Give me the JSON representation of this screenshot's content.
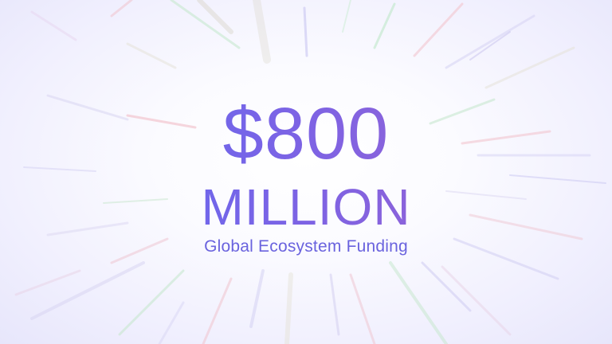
{
  "hero": {
    "amount": "$800",
    "unit": "MILLION",
    "caption": "Global Ecosystem Funding"
  },
  "colors": {
    "gradient_start": "#5b6cf5",
    "gradient_end": "#a564c9",
    "caption": "#6a63de",
    "background": "#ffffff"
  }
}
